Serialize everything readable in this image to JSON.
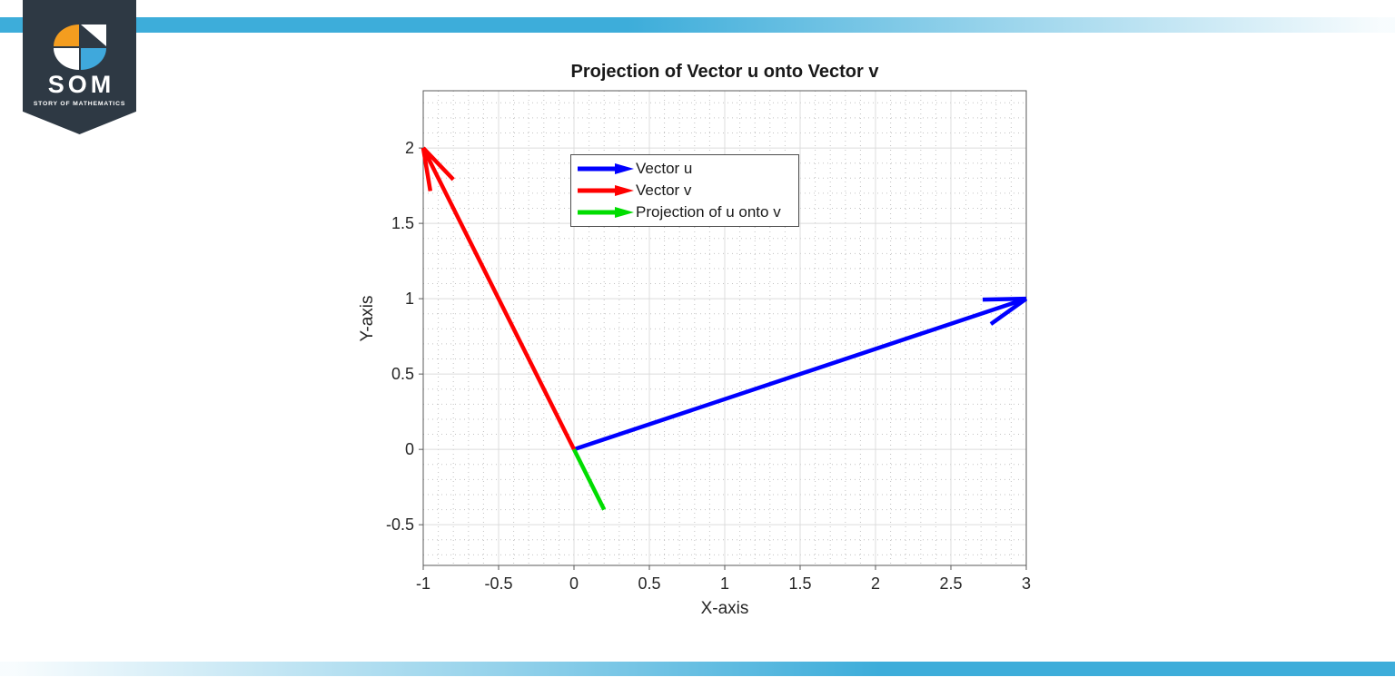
{
  "branding": {
    "stripe_color": "#3dadda",
    "logo": {
      "text": "SOM",
      "subtext": "STORY OF MATHEMATICS",
      "banner_color": "#2e3944",
      "orange": "#f49d1f",
      "blue": "#3fa8dc"
    }
  },
  "chart_data": {
    "type": "quiver",
    "title": "Projection of Vector u onto Vector v",
    "xlabel": "X-axis",
    "ylabel": "Y-axis",
    "xlim": [
      -1,
      3
    ],
    "ylim": [
      -0.77,
      2.38
    ],
    "xticks": [
      -1,
      -0.5,
      0,
      0.5,
      1,
      1.5,
      2,
      2.5,
      3
    ],
    "yticks": [
      -0.5,
      0,
      0.5,
      1,
      1.5,
      2
    ],
    "grid": {
      "major": true,
      "minor": true,
      "minor_step": 0.1
    },
    "axis_color": "#5a5a5a",
    "text_color": "#262626",
    "major_grid_color": "#dcdcdc",
    "minor_grid_color": "#c2c2c2",
    "vectors": [
      {
        "label": "Vector u",
        "from": [
          0,
          0
        ],
        "to": [
          3,
          1
        ],
        "color": "#0000ff",
        "arrowhead": true
      },
      {
        "label": "Vector v",
        "from": [
          0,
          0
        ],
        "to": [
          -1,
          2
        ],
        "color": "#ff0000",
        "arrowhead": true
      },
      {
        "label": "Projection of u onto v",
        "from": [
          0,
          0
        ],
        "to": [
          0.2,
          -0.4
        ],
        "color": "#00dd00",
        "arrowhead": false
      }
    ],
    "legend": {
      "position": "upper-left",
      "entries": [
        {
          "label": "Vector u",
          "color": "#0000ff"
        },
        {
          "label": "Vector v",
          "color": "#ff0000"
        },
        {
          "label": "Projection of u onto v",
          "color": "#00dd00"
        }
      ]
    }
  }
}
